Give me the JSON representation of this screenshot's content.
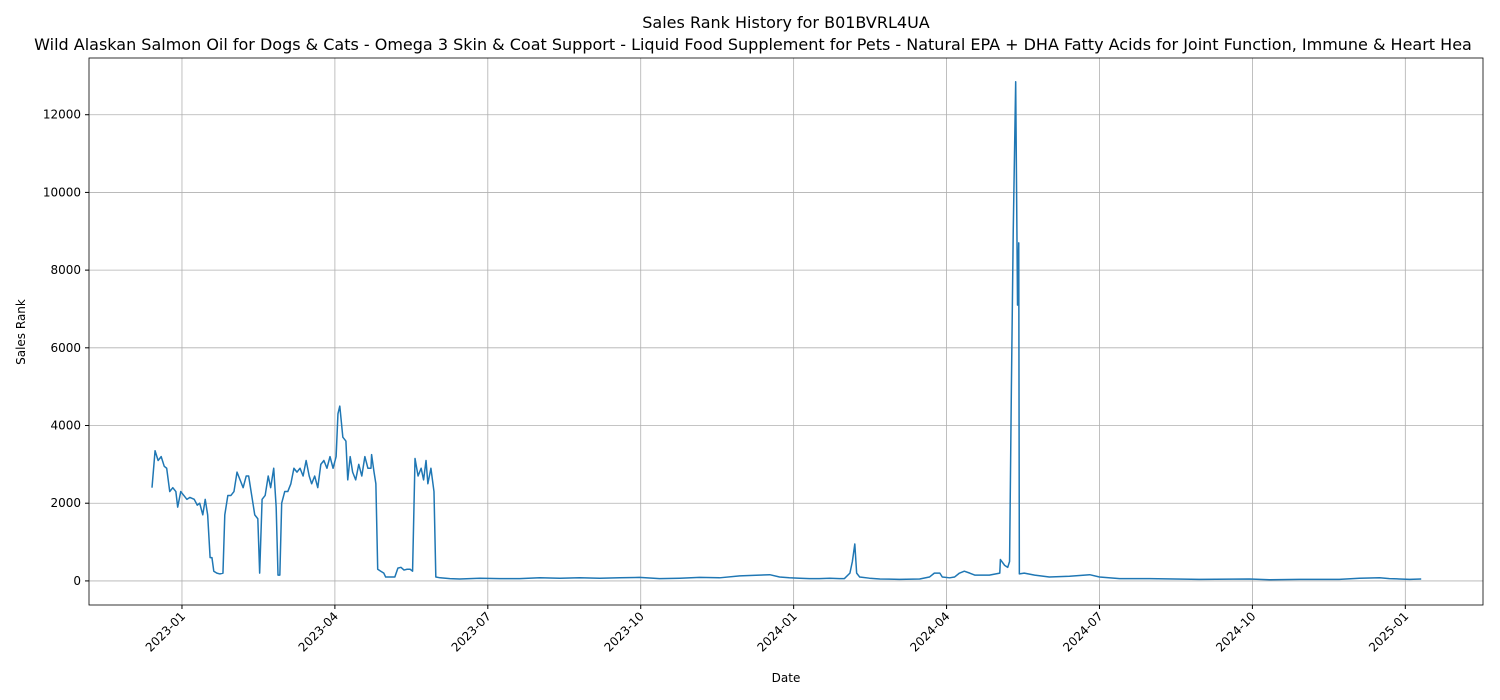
{
  "chart_data": {
    "type": "line",
    "title": "Sales Rank History for B01BVRL4UA",
    "subtitle": "Wild Alaskan Salmon Oil for Dogs & Cats - Omega 3 Skin & Coat Support - Liquid Food Supplement for Pets - Natural EPA + DHA Fatty Acids for Joint Function, Immune & Heart Hea",
    "x_label": "Date",
    "y_label": "Sales Rank",
    "x": [
      2022.951,
      2022.956,
      2022.961,
      2022.966,
      2022.971,
      2022.975,
      2022.98,
      2022.985,
      2022.99,
      2022.993,
      2022.998,
      2023.003,
      2023.008,
      2023.013,
      2023.02,
      2023.025,
      2023.029,
      2023.034,
      2023.038,
      2023.042,
      2023.046,
      2023.049,
      2023.052,
      2023.057,
      2023.062,
      2023.067,
      2023.07,
      2023.075,
      2023.08,
      2023.085,
      2023.09,
      2023.095,
      2023.1,
      2023.105,
      2023.109,
      2023.114,
      2023.119,
      2023.124,
      2023.127,
      2023.131,
      2023.136,
      2023.141,
      2023.145,
      2023.15,
      2023.154,
      2023.157,
      2023.16,
      2023.163,
      2023.168,
      2023.173,
      2023.178,
      2023.183,
      2023.188,
      2023.193,
      2023.198,
      2023.203,
      2023.208,
      2023.212,
      2023.217,
      2023.222,
      2023.227,
      2023.232,
      2023.237,
      2023.242,
      2023.247,
      2023.252,
      2023.255,
      2023.258,
      2023.263,
      2023.268,
      2023.271,
      2023.275,
      2023.279,
      2023.284,
      2023.289,
      2023.294,
      2023.299,
      2023.304,
      2023.309,
      2023.31,
      2023.314,
      2023.317,
      2023.32,
      2023.325,
      2023.33,
      2023.333,
      2023.338,
      2023.343,
      2023.348,
      2023.353,
      2023.358,
      2023.363,
      2023.368,
      2023.373,
      2023.377,
      2023.381,
      2023.386,
      2023.391,
      2023.395,
      2023.399,
      2023.402,
      2023.407,
      2023.412,
      2023.415,
      2023.422,
      2023.438,
      2023.454,
      2023.487,
      2023.52,
      2023.552,
      2023.585,
      2023.618,
      2023.65,
      2023.683,
      2023.716,
      2023.748,
      2023.781,
      2023.814,
      2023.846,
      2023.879,
      2023.912,
      2023.944,
      2023.961,
      2023.977,
      2023.993,
      2024.01,
      2024.026,
      2024.042,
      2024.059,
      2024.075,
      2024.083,
      2024.092,
      2024.096,
      2024.1,
      2024.103,
      2024.108,
      2024.124,
      2024.141,
      2024.173,
      2024.206,
      2024.222,
      2024.23,
      2024.239,
      2024.243,
      2024.255,
      2024.263,
      2024.271,
      2024.279,
      2024.288,
      2024.296,
      2024.304,
      2024.32,
      2024.337,
      2024.338,
      2024.345,
      2024.35,
      2024.353,
      2024.356,
      2024.359,
      2024.363,
      2024.366,
      2024.368,
      2024.369,
      2024.377,
      2024.394,
      2024.418,
      2024.451,
      2024.484,
      2024.5,
      2024.533,
      2024.582,
      2024.663,
      2024.745,
      2024.778,
      2024.827,
      2024.859,
      2024.892,
      2024.925,
      2024.958,
      2024.974,
      2024.99,
      2025.007,
      2025.026
    ],
    "series": [
      {
        "name": "Sales Rank",
        "color": "#1f77b4",
        "values": [
          2400,
          3350,
          3100,
          3200,
          2950,
          2900,
          2300,
          2400,
          2300,
          1900,
          2300,
          2200,
          2100,
          2150,
          2100,
          1950,
          2000,
          1700,
          2100,
          1700,
          600,
          600,
          250,
          200,
          180,
          200,
          1700,
          2200,
          2200,
          2300,
          2800,
          2600,
          2400,
          2700,
          2700,
          2200,
          1700,
          1600,
          200,
          2100,
          2200,
          2700,
          2400,
          2900,
          1900,
          150,
          150,
          2000,
          2300,
          2300,
          2500,
          2900,
          2800,
          2900,
          2700,
          3100,
          2700,
          2500,
          2700,
          2400,
          3000,
          3100,
          2900,
          3200,
          2900,
          3200,
          4300,
          4500,
          3700,
          3600,
          2600,
          3200,
          2800,
          2600,
          3000,
          2700,
          3200,
          2900,
          2900,
          3250,
          2800,
          2500,
          300,
          250,
          200,
          100,
          100,
          100,
          100,
          330,
          350,
          280,
          300,
          300,
          250,
          3150,
          2700,
          2900,
          2600,
          3100,
          2500,
          2900,
          2300,
          100,
          80,
          60,
          50,
          70,
          60,
          60,
          80,
          70,
          80,
          70,
          80,
          90,
          60,
          70,
          90,
          80,
          130,
          150,
          160,
          100,
          80,
          70,
          60,
          60,
          70,
          60,
          60,
          200,
          500,
          950,
          200,
          100,
          70,
          50,
          40,
          50,
          100,
          200,
          200,
          100,
          80,
          100,
          200,
          250,
          200,
          150,
          150,
          150,
          200,
          550,
          400,
          350,
          500,
          5000,
          9000,
          12850,
          7100,
          8700,
          180,
          200,
          150,
          100,
          120,
          160,
          100,
          60,
          60,
          40,
          50,
          30,
          40,
          40,
          40,
          70,
          80,
          60,
          50,
          40,
          50
        ]
      }
    ],
    "xlim": [
      2022.848,
      2025.127
    ],
    "xticks": [
      {
        "value": 2023.0,
        "label": "2023-01"
      },
      {
        "value": 2023.25,
        "label": "2023-04"
      },
      {
        "value": 2023.5,
        "label": "2023-07"
      },
      {
        "value": 2023.75,
        "label": "2023-10"
      },
      {
        "value": 2024.0,
        "label": "2024-01"
      },
      {
        "value": 2024.25,
        "label": "2024-04"
      },
      {
        "value": 2024.5,
        "label": "2024-07"
      },
      {
        "value": 2024.75,
        "label": "2024-10"
      },
      {
        "value": 2025.0,
        "label": "2025-01"
      }
    ],
    "ylim": [
      -620,
      13460
    ],
    "yticks": [
      0,
      2000,
      4000,
      6000,
      8000,
      10000,
      12000
    ],
    "grid": true
  }
}
